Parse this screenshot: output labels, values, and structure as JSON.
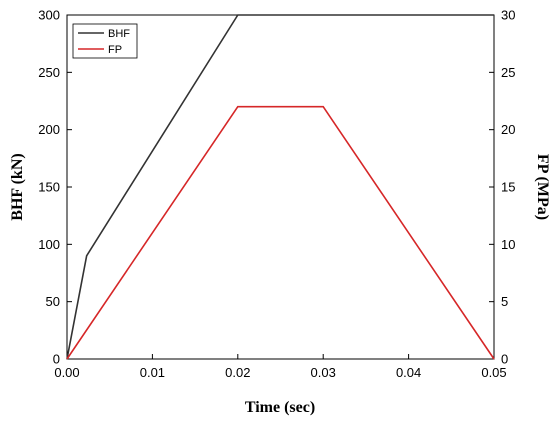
{
  "chart_data": {
    "type": "line",
    "xlabel": "Time (sec)",
    "ylabel_left": "BHF (kN)",
    "ylabel_right": "FP (MPa)",
    "xlim": [
      0,
      0.05
    ],
    "ylim_left": [
      0,
      300
    ],
    "ylim_right": [
      0,
      30
    ],
    "x_ticks": [
      "0.00",
      "0.01",
      "0.02",
      "0.03",
      "0.04",
      "0.05"
    ],
    "y_left_ticks": [
      "0",
      "50",
      "100",
      "150",
      "200",
      "250",
      "300"
    ],
    "y_right_ticks": [
      "0",
      "5",
      "10",
      "15",
      "20",
      "25",
      "30"
    ],
    "legend_position": "top-left",
    "series": [
      {
        "name": "BHF",
        "axis": "left",
        "color": "#333333",
        "x": [
          0,
          0.0023,
          0.02,
          0.05
        ],
        "y": [
          0,
          90,
          300,
          300
        ]
      },
      {
        "name": "FP",
        "axis": "right",
        "color": "#d62728",
        "x": [
          0,
          0.02,
          0.03,
          0.05
        ],
        "y": [
          0,
          22,
          22,
          0
        ]
      }
    ]
  }
}
